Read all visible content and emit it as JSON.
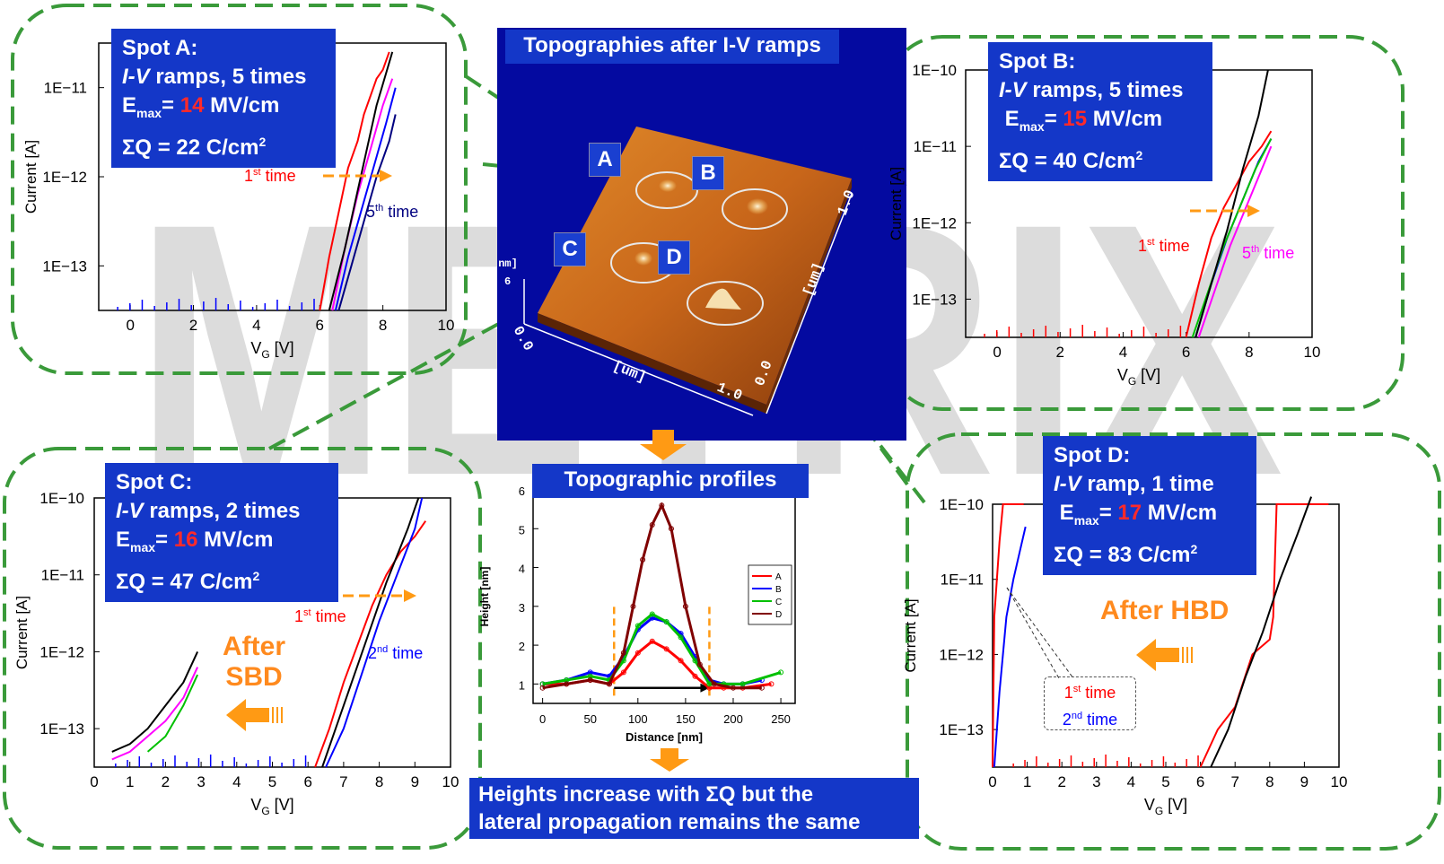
{
  "watermark": "METRIX",
  "afm": {
    "title": "Topographies after I-V ramps",
    "spot_letters": [
      "A",
      "B",
      "C",
      "D"
    ],
    "axis_unit": "[um]",
    "axis_ticks": [
      "0.0",
      "1.0",
      "0.0",
      "1.0"
    ],
    "z_unit": "[nm]",
    "z_ticks": [
      "6",
      "0.0"
    ]
  },
  "colors": {
    "red": "#ff0000",
    "blue": "#0000ff",
    "green": "#00c000",
    "black": "#000000",
    "magenta": "#ff00ff",
    "navy": "#000080",
    "title_bg": "#1437c8",
    "orange": "#ff8a1e",
    "dash": "#3a9a3a"
  },
  "spots": {
    "A": {
      "l1": "Spot A:",
      "l2a": "I-V",
      "l2b": " ramps, 5 times",
      "l3a": "E",
      "l3sub": "max",
      "l3b": "= ",
      "l3val": "14",
      "l3c": " MV/cm",
      "l4a": "ΣQ = 22 C/cm",
      "l4sup": "2"
    },
    "B": {
      "l1": "Spot B:",
      "l2a": "I-V",
      "l2b": " ramps, 5 times",
      "l3a": "E",
      "l3sub": "max",
      "l3b": "= ",
      "l3val": "15",
      "l3c": " MV/cm",
      "l4a": "ΣQ = 40 C/cm",
      "l4sup": "2"
    },
    "C": {
      "l1": "Spot C:",
      "l2a": "I-V",
      "l2b": " ramps, 2 times",
      "l3a": "E",
      "l3sub": "max",
      "l3b": "= ",
      "l3val": "16",
      "l3c": " MV/cm",
      "l4a": "ΣQ = 47 C/cm",
      "l4sup": "2"
    },
    "D": {
      "l1": "Spot D:",
      "l2a": "I-V",
      "l2b": " ramp, 1 time",
      "l3a": "E",
      "l3sub": "max",
      "l3b": "= ",
      "l3val": "17",
      "l3c": " MV/cm",
      "l4a": "ΣQ = 83 C/cm",
      "l4sup": "2"
    }
  },
  "annotations": {
    "a_first": "1",
    "a_first_sup": "st",
    "a_first_rest": " time",
    "a_fifth": "5",
    "a_fifth_sup": "th",
    "a_fifth_rest": " time",
    "b_first": "1",
    "b_first_sup": "st",
    "b_first_rest": " time",
    "b_fifth": "5",
    "b_fifth_sup": "th",
    "b_fifth_rest": " time",
    "c_first": "1",
    "c_first_sup": "st",
    "c_first_rest": " time",
    "c_second": "2",
    "c_second_sup": "nd",
    "c_second_rest": " time",
    "c_after1": "After",
    "c_after2": "SBD",
    "d_after": "After HBD",
    "d_first": "1",
    "d_first_sup": "st",
    "d_first_rest": " time",
    "d_second": "2",
    "d_second_sup": "nd",
    "d_second_rest": " time"
  },
  "profiles_title": "Topographic profiles",
  "conclusion_l1": "Heights increase with ΣQ but the",
  "conclusion_l2": "lateral propagation remains the same",
  "chart_data": [
    {
      "id": "spotA",
      "type": "line",
      "xlabel": "V",
      "xlabel_sub": "G",
      "xlabel_unit": " [V]",
      "ylabel": "Current [A]",
      "xlim": [
        -1,
        10
      ],
      "ylim_log10": [
        -13.5,
        -10.5
      ],
      "ylog": true,
      "xticks": [
        "0",
        "2",
        "4",
        "6",
        "8",
        "10"
      ],
      "yticks": [
        "1E−13",
        "1E−12",
        "1E−11"
      ],
      "series": [
        {
          "color": "#ff0000",
          "x": [
            6.0,
            6.3,
            6.6,
            6.9,
            7.2,
            7.4,
            7.6,
            7.8,
            8.0,
            8.2
          ],
          "y_log10": [
            -13.5,
            -12.9,
            -12.4,
            -11.9,
            -11.6,
            -11.3,
            -11.1,
            -10.9,
            -10.8,
            -10.6
          ]
        },
        {
          "color": "#ff00ff",
          "x": [
            6.4,
            6.8,
            7.2,
            7.6,
            8.0,
            8.3
          ],
          "y_log10": [
            -13.5,
            -12.8,
            -12.2,
            -11.7,
            -11.2,
            -10.9
          ]
        },
        {
          "color": "#0000ff",
          "x": [
            6.5,
            6.9,
            7.3,
            7.7,
            8.1,
            8.4
          ],
          "y_log10": [
            -13.5,
            -12.9,
            -12.4,
            -11.9,
            -11.4,
            -11.0
          ]
        },
        {
          "color": "#000080",
          "x": [
            6.6,
            7.0,
            7.4,
            7.8,
            8.2,
            8.4
          ],
          "y_log10": [
            -13.5,
            -13.0,
            -12.5,
            -12.0,
            -11.6,
            -11.3
          ]
        },
        {
          "color": "#000000",
          "x": [
            6.3,
            6.8,
            7.3,
            7.8,
            8.3
          ],
          "y_log10": [
            -13.5,
            -12.8,
            -12.0,
            -11.2,
            -10.6
          ]
        }
      ],
      "noise_color": "#0000ff"
    },
    {
      "id": "spotB",
      "type": "line",
      "xlabel": "V",
      "xlabel_sub": "G",
      "xlabel_unit": " [V]",
      "ylabel": "Current [A]",
      "xlim": [
        -1,
        10
      ],
      "ylim_log10": [
        -13.5,
        -10
      ],
      "ylog": true,
      "xticks": [
        "0",
        "2",
        "4",
        "6",
        "8",
        "10"
      ],
      "yticks": [
        "1E−13",
        "1E−12",
        "1E−11",
        "1E−10"
      ],
      "series": [
        {
          "color": "#ff0000",
          "x": [
            6.0,
            6.4,
            6.8,
            7.2,
            7.6,
            8.0,
            8.4,
            8.7
          ],
          "y_log10": [
            -13.5,
            -12.8,
            -12.2,
            -11.8,
            -11.5,
            -11.2,
            -11.0,
            -10.8
          ]
        },
        {
          "color": "#0000ff",
          "x": [
            6.3,
            6.8,
            7.3,
            7.8,
            8.3,
            8.7
          ],
          "y_log10": [
            -13.5,
            -12.8,
            -12.2,
            -11.7,
            -11.2,
            -10.9
          ]
        },
        {
          "color": "#00c000",
          "x": [
            6.2,
            6.7,
            7.2,
            7.7,
            8.2,
            8.7
          ],
          "y_log10": [
            -13.5,
            -12.9,
            -12.3,
            -11.8,
            -11.3,
            -10.9
          ]
        },
        {
          "color": "#ff00ff",
          "x": [
            6.4,
            6.9,
            7.4,
            7.9,
            8.4,
            8.7
          ],
          "y_log10": [
            -13.5,
            -12.9,
            -12.3,
            -11.8,
            -11.3,
            -11.0
          ]
        },
        {
          "color": "#000000",
          "x": [
            6.3,
            6.8,
            7.3,
            7.8,
            8.3,
            8.6
          ],
          "y_log10": [
            -13.5,
            -12.8,
            -12.1,
            -11.3,
            -10.6,
            -10.0
          ]
        }
      ],
      "noise_color": "#ff0000"
    },
    {
      "id": "spotC",
      "type": "line",
      "xlabel": "V",
      "xlabel_sub": "G",
      "xlabel_unit": " [V]",
      "ylabel": "Current [A]",
      "xlim": [
        0,
        10
      ],
      "ylim_log10": [
        -13.5,
        -10
      ],
      "ylog": true,
      "xticks": [
        "0",
        "1",
        "2",
        "3",
        "4",
        "5",
        "6",
        "7",
        "8",
        "9",
        "10"
      ],
      "yticks": [
        "1E−13",
        "1E−12",
        "1E−11",
        "1E−10"
      ],
      "series": [
        {
          "color": "#ff0000",
          "x": [
            6.2,
            6.6,
            7.0,
            7.4,
            7.8,
            8.2,
            8.6,
            9.0,
            9.3
          ],
          "y_log10": [
            -13.5,
            -13.0,
            -12.4,
            -11.9,
            -11.4,
            -11.0,
            -10.7,
            -10.5,
            -10.3
          ]
        },
        {
          "color": "#0000ff",
          "x": [
            6.5,
            7.0,
            7.5,
            8.0,
            8.5,
            9.0,
            9.2
          ],
          "y_log10": [
            -13.5,
            -13.0,
            -12.3,
            -11.6,
            -11.0,
            -10.4,
            -10.0
          ]
        },
        {
          "color": "#000000",
          "x": [
            6.4,
            7.0,
            7.6,
            8.2,
            8.8,
            9.1
          ],
          "y_log10": [
            -13.5,
            -12.7,
            -11.9,
            -11.1,
            -10.4,
            -10.0
          ]
        },
        {
          "color": "#000000",
          "x": [
            0.5,
            1.0,
            1.5,
            2.0,
            2.5,
            2.9
          ],
          "y_log10": [
            -13.3,
            -13.2,
            -13.0,
            -12.7,
            -12.4,
            -12.0
          ]
        },
        {
          "color": "#ff00ff",
          "x": [
            0.5,
            1.0,
            1.5,
            2.0,
            2.5,
            2.9
          ],
          "y_log10": [
            -13.4,
            -13.3,
            -13.1,
            -12.9,
            -12.6,
            -12.2
          ]
        },
        {
          "color": "#00c000",
          "x": [
            1.5,
            2.0,
            2.5,
            2.9
          ],
          "y_log10": [
            -13.3,
            -13.1,
            -12.7,
            -12.3
          ]
        }
      ],
      "noise_color": "#0000ff"
    },
    {
      "id": "spotD",
      "type": "line",
      "xlabel": "V",
      "xlabel_sub": "G",
      "xlabel_unit": " [V]",
      "ylabel": "Current [A]",
      "xlim": [
        0,
        10
      ],
      "ylim_log10": [
        -13.5,
        -10
      ],
      "ylog": true,
      "xticks": [
        "0",
        "1",
        "2",
        "3",
        "4",
        "5",
        "6",
        "7",
        "8",
        "9",
        "10"
      ],
      "yticks": [
        "1E−13",
        "1E−12",
        "1E−11",
        "1E−10"
      ],
      "series": [
        {
          "color": "#ff0000",
          "x": [
            0.0,
            0.05,
            0.2,
            0.3,
            0.9
          ],
          "y_log10": [
            -13.5,
            -11.5,
            -10.5,
            -10.0,
            -10.0
          ]
        },
        {
          "color": "#0000ff",
          "x": [
            0.05,
            0.2,
            0.4,
            0.6,
            0.8,
            0.95
          ],
          "y_log10": [
            -13.5,
            -12.5,
            -11.5,
            -11.0,
            -10.6,
            -10.3
          ]
        },
        {
          "color": "#ff0000",
          "x": [
            6.0,
            6.5,
            7.0,
            7.5,
            8.0,
            8.1,
            8.2,
            9.7
          ],
          "y_log10": [
            -13.5,
            -13.0,
            -12.7,
            -12.0,
            -11.8,
            -11.5,
            -10.0,
            -10.0
          ]
        },
        {
          "color": "#000000",
          "x": [
            6.3,
            6.8,
            7.3,
            7.8,
            8.3,
            8.8,
            9.2
          ],
          "y_log10": [
            -13.5,
            -13.0,
            -12.3,
            -11.7,
            -11.0,
            -10.4,
            -9.9
          ]
        }
      ],
      "noise_color": "#ff0000"
    },
    {
      "id": "profiles",
      "type": "line",
      "xlabel": "Distance [nm]",
      "ylabel": "Height [nm]",
      "xlim": [
        -10,
        265
      ],
      "ylim": [
        0.5,
        6
      ],
      "xticks": [
        "0",
        "50",
        "100",
        "150",
        "200",
        "250"
      ],
      "yticks": [
        "1",
        "2",
        "3",
        "4",
        "5",
        "6"
      ],
      "series": [
        {
          "name": "A",
          "color": "#ff0000",
          "x": [
            0,
            25,
            50,
            70,
            85,
            100,
            115,
            130,
            145,
            160,
            175,
            190,
            210,
            240
          ],
          "y": [
            1.0,
            1.0,
            1.1,
            1.0,
            1.3,
            1.8,
            2.1,
            1.9,
            1.6,
            1.2,
            0.9,
            0.9,
            0.9,
            1.0
          ]
        },
        {
          "name": "B",
          "color": "#0000ff",
          "x": [
            0,
            25,
            50,
            70,
            85,
            100,
            115,
            130,
            145,
            160,
            175,
            190,
            210,
            230
          ],
          "y": [
            1.0,
            1.1,
            1.3,
            1.2,
            1.7,
            2.4,
            2.7,
            2.6,
            2.3,
            1.7,
            1.1,
            1.0,
            1.0,
            1.1
          ]
        },
        {
          "name": "C",
          "color": "#00c000",
          "x": [
            0,
            25,
            50,
            70,
            85,
            100,
            115,
            130,
            145,
            160,
            175,
            190,
            210,
            250
          ],
          "y": [
            1.0,
            1.1,
            1.2,
            1.1,
            1.6,
            2.5,
            2.8,
            2.6,
            2.2,
            1.6,
            1.0,
            1.0,
            1.0,
            1.3
          ]
        },
        {
          "name": "D",
          "color": "#800000",
          "x": [
            0,
            25,
            50,
            70,
            85,
            95,
            105,
            115,
            125,
            135,
            150,
            165,
            180,
            200,
            230
          ],
          "y": [
            0.9,
            1.0,
            1.1,
            1.0,
            1.8,
            3.0,
            4.2,
            5.1,
            5.6,
            5.0,
            3.0,
            1.5,
            1.0,
            0.9,
            0.9
          ]
        }
      ],
      "vmarks": [
        75,
        175
      ],
      "arrow": [
        75,
        175,
        0.9
      ]
    }
  ]
}
